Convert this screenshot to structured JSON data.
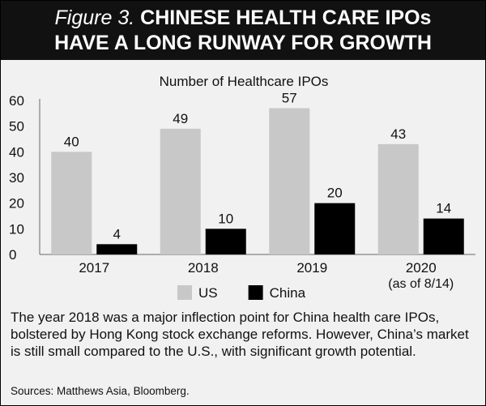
{
  "header": {
    "figure_label": "Figure 3.",
    "title_line1": "CHINESE HEALTH CARE IPOs",
    "title_line2": "HAVE A LONG RUNWAY FOR GROWTH"
  },
  "chart_data": {
    "type": "bar",
    "title": "Number of Healthcare IPOs",
    "categories": [
      "2017",
      "2018",
      "2019",
      "2020"
    ],
    "category_sublabels": [
      "",
      "",
      "",
      "(as of 8/14)"
    ],
    "series": [
      {
        "name": "US",
        "values": [
          40,
          49,
          57,
          43
        ],
        "color": "#c8c8c8"
      },
      {
        "name": "China",
        "values": [
          4,
          10,
          20,
          14
        ],
        "color": "#000000"
      }
    ],
    "ylim": [
      0,
      60
    ],
    "yticks": [
      "0",
      "10",
      "20",
      "30",
      "40",
      "50",
      "60"
    ],
    "grid": false,
    "legend": "bottom"
  },
  "caption": "The year 2018 was a major inflection point for China health care IPOs, bolstered by Hong Kong stock exchange reforms. However, China’s market is still small compared to the U.S., with significant growth potential.",
  "sources": "Sources: Matthews Asia, Bloomberg."
}
